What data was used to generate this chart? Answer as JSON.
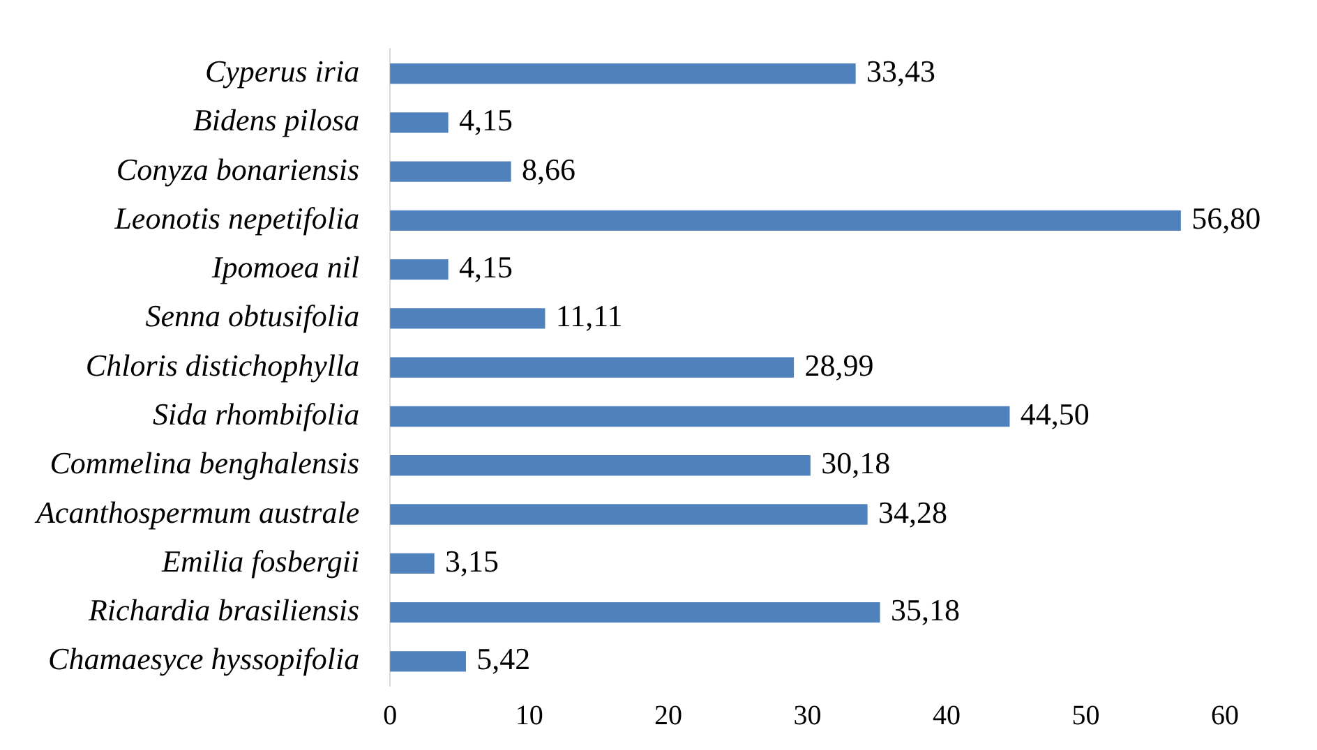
{
  "chart_data": {
    "type": "bar",
    "orientation": "horizontal",
    "categories": [
      "Cyperus iria",
      "Bidens pilosa",
      "Conyza bonariensis",
      "Leonotis nepetifolia",
      "Ipomoea nil",
      "Senna obtusifolia",
      "Chloris distichophylla",
      "Sida rhombifolia",
      "Commelina benghalensis",
      "Acanthospermum australe",
      "Emilia fosbergii",
      "Richardia brasiliensis",
      "Chamaesyce hyssopifolia"
    ],
    "values": [
      33.43,
      4.15,
      8.66,
      56.8,
      4.15,
      11.11,
      28.99,
      44.5,
      30.18,
      34.28,
      3.15,
      35.18,
      5.42
    ],
    "value_labels": [
      "33,43",
      "4,15",
      "8,66",
      "56,80",
      "4,15",
      "11,11",
      "28,99",
      "44,50",
      "30,18",
      "34,28",
      "3,15",
      "35,18",
      "5,42"
    ],
    "color": "#4f81bd",
    "xlim": [
      0,
      60
    ],
    "xticks": [
      0,
      10,
      20,
      30,
      40,
      50,
      60
    ],
    "grid": false,
    "legend": false
  }
}
